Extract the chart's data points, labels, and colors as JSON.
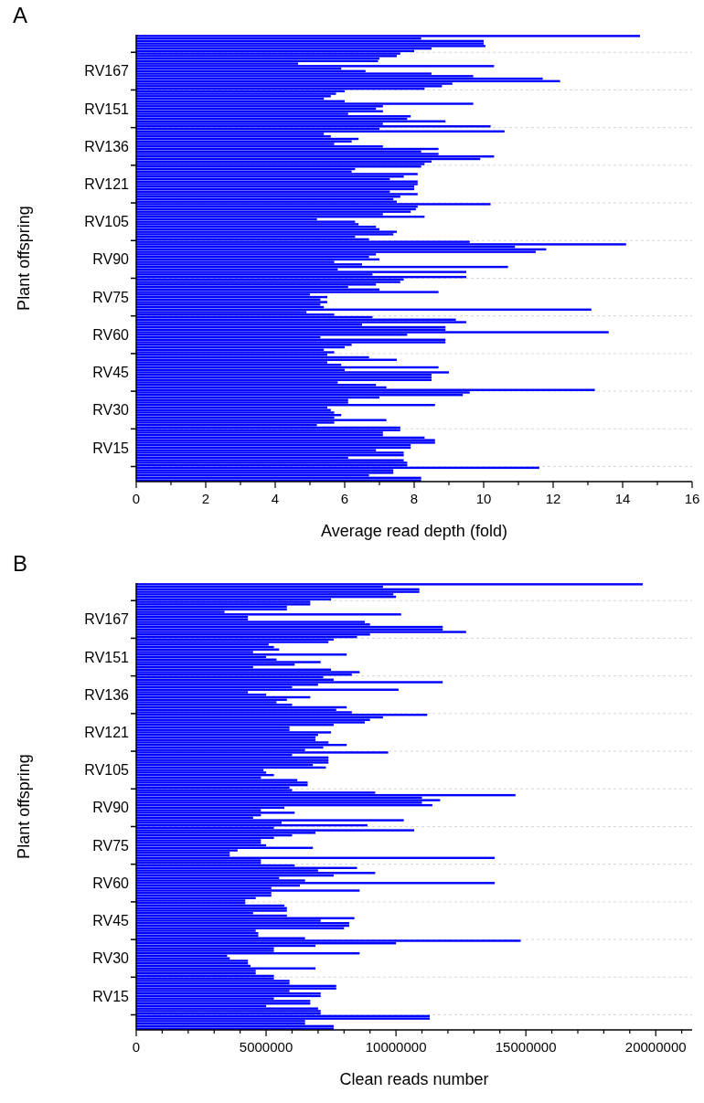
{
  "chart_data": [
    {
      "type": "bar",
      "orientation": "horizontal",
      "title": "A",
      "xlabel": "Average read depth (fold)",
      "ylabel": "Plant offspring",
      "color": "#0000ff",
      "grid": "y",
      "categories": [
        null,
        null,
        null,
        null,
        null,
        null,
        null,
        null,
        null,
        null,
        null,
        null,
        null,
        null,
        "RV167",
        null,
        null,
        null,
        null,
        null,
        null,
        null,
        null,
        null,
        null,
        null,
        null,
        null,
        null,
        "RV151",
        null,
        null,
        null,
        null,
        null,
        null,
        null,
        null,
        null,
        null,
        null,
        null,
        null,
        null,
        "RV136",
        null,
        null,
        null,
        null,
        null,
        null,
        null,
        null,
        null,
        null,
        null,
        null,
        null,
        null,
        "RV121",
        null,
        null,
        null,
        null,
        null,
        null,
        null,
        null,
        null,
        null,
        null,
        null,
        null,
        null,
        "RV105",
        null,
        null,
        null,
        null,
        null,
        null,
        null,
        null,
        null,
        null,
        null,
        null,
        null,
        null,
        "RV90",
        null,
        null,
        null,
        null,
        null,
        null,
        null,
        null,
        null,
        null,
        null,
        null,
        null,
        null,
        "RV75",
        null,
        null,
        null,
        null,
        null,
        null,
        null,
        null,
        null,
        null,
        null,
        null,
        null,
        null,
        "RV60",
        null,
        null,
        null,
        null,
        null,
        null,
        null,
        null,
        null,
        null,
        null,
        null,
        null,
        null,
        "RV45",
        null,
        null,
        null,
        null,
        null,
        null,
        null,
        null,
        null,
        null,
        null,
        null,
        null,
        null,
        "RV30",
        null,
        null,
        null,
        null,
        null,
        null,
        null,
        null,
        null,
        null,
        null,
        null,
        null,
        null,
        "RV15",
        null,
        null,
        null,
        null,
        null,
        null,
        null,
        null,
        null,
        null,
        null,
        null,
        null
      ],
      "values": [
        14.5,
        8.2,
        10.0,
        10.0,
        10.05,
        8.5,
        8.0,
        7.6,
        7.5,
        7.0,
        6.96,
        4.66,
        10.3,
        5.9,
        6.6,
        8.5,
        9.7,
        11.7,
        12.2,
        9.1,
        8.8,
        8.3,
        6.0,
        5.75,
        5.6,
        5.4,
        6.0,
        9.7,
        7.1,
        6.9,
        7.1,
        6.1,
        7.9,
        7.8,
        8.9,
        7.1,
        10.2,
        7.0,
        10.6,
        5.4,
        5.6,
        6.4,
        6.2,
        5.7,
        7.1,
        8.7,
        8.2,
        8.7,
        10.3,
        9.9,
        8.5,
        8.3,
        8.2,
        6.3,
        6.2,
        8.1,
        7.7,
        7.3,
        8.1,
        8.1,
        8.0,
        8.0,
        7.3,
        8.1,
        7.6,
        7.4,
        7.5,
        10.2,
        8.1,
        8.05,
        7.9,
        7.1,
        8.3,
        5.2,
        6.3,
        6.4,
        6.9,
        7.0,
        7.5,
        7.4,
        6.3,
        6.7,
        9.6,
        14.1,
        10.9,
        11.8,
        11.5,
        6.9,
        6.7,
        7.0,
        5.7,
        6.5,
        10.7,
        5.8,
        9.5,
        6.8,
        9.5,
        7.7,
        7.6,
        6.9,
        6.1,
        7.0,
        8.7,
        5.0,
        5.5,
        5.3,
        5.5,
        5.3,
        5.4,
        13.1,
        4.9,
        5.7,
        6.8,
        9.2,
        9.5,
        6.5,
        8.9,
        8.9,
        13.6,
        7.8,
        5.3,
        8.9,
        8.9,
        6.2,
        6.0,
        5.4,
        5.7,
        5.5,
        6.7,
        7.5,
        5.5,
        5.9,
        8.7,
        6.0,
        9.0,
        8.5,
        8.5,
        8.5,
        5.8,
        6.9,
        7.2,
        13.2,
        9.6,
        9.4,
        7.0,
        6.1,
        6.1,
        8.6,
        5.5,
        5.6,
        5.7,
        5.9,
        5.7,
        7.2,
        5.7,
        5.2,
        7.6,
        7.6,
        7.1,
        7.1,
        8.3,
        8.6,
        8.6,
        7.9,
        7.9,
        6.9,
        7.7,
        7.7,
        6.1,
        7.7,
        7.8,
        7.8,
        11.6,
        7.4,
        7.4,
        6.7,
        8.2,
        8.2
      ],
      "xlim": [
        0,
        16
      ],
      "xticks": [
        0,
        {
          "value": 1,
          "label": null
        },
        2,
        {
          "value": 3,
          "label": null
        },
        4,
        {
          "value": 5,
          "label": null
        },
        6,
        {
          "value": 7,
          "label": null
        },
        8,
        {
          "value": 9,
          "label": null
        },
        10,
        {
          "value": 11,
          "label": null
        },
        12,
        {
          "value": 13,
          "label": null
        },
        14,
        {
          "value": 15,
          "label": null
        },
        16
      ]
    },
    {
      "type": "bar",
      "orientation": "horizontal",
      "title": "B",
      "xlabel": "Clean reads number",
      "ylabel": "Plant offspring",
      "color": "#0000ff",
      "grid": "y",
      "categories": [
        null,
        null,
        null,
        null,
        null,
        null,
        null,
        null,
        null,
        null,
        null,
        null,
        null,
        null,
        "RV167",
        null,
        null,
        null,
        null,
        null,
        null,
        null,
        null,
        null,
        null,
        null,
        null,
        null,
        null,
        "RV151",
        null,
        null,
        null,
        null,
        null,
        null,
        null,
        null,
        null,
        null,
        null,
        null,
        null,
        null,
        "RV136",
        null,
        null,
        null,
        null,
        null,
        null,
        null,
        null,
        null,
        null,
        null,
        null,
        null,
        null,
        "RV121",
        null,
        null,
        null,
        null,
        null,
        null,
        null,
        null,
        null,
        null,
        null,
        null,
        null,
        null,
        "RV105",
        null,
        null,
        null,
        null,
        null,
        null,
        null,
        null,
        null,
        null,
        null,
        null,
        null,
        null,
        "RV90",
        null,
        null,
        null,
        null,
        null,
        null,
        null,
        null,
        null,
        null,
        null,
        null,
        null,
        null,
        "RV75",
        null,
        null,
        null,
        null,
        null,
        null,
        null,
        null,
        null,
        null,
        null,
        null,
        null,
        null,
        "RV60",
        null,
        null,
        null,
        null,
        null,
        null,
        null,
        null,
        null,
        null,
        null,
        null,
        null,
        null,
        "RV45",
        null,
        null,
        null,
        null,
        null,
        null,
        null,
        null,
        null,
        null,
        null,
        null,
        null,
        null,
        "RV30",
        null,
        null,
        null,
        null,
        null,
        null,
        null,
        null,
        null,
        null,
        null,
        null,
        null,
        null,
        "RV15",
        null,
        null,
        null,
        null,
        null,
        null,
        null,
        null,
        null,
        null,
        null,
        null,
        null
      ],
      "values": [
        19500000,
        9500000,
        10900000,
        10900000,
        9900000,
        10000000,
        7500000,
        6700000,
        6700000,
        5800000,
        5800000,
        3400000,
        10200000,
        4300000,
        4300000,
        8800000,
        9000000,
        11800000,
        11800000,
        12700000,
        9000000,
        8500000,
        7600000,
        7400000,
        5100000,
        5300000,
        5500000,
        4500000,
        8100000,
        5000000,
        5400000,
        7100000,
        6100000,
        4500000,
        7500000,
        8600000,
        8300000,
        7200000,
        7600000,
        11800000,
        7000000,
        6000000,
        10100000,
        4300000,
        5000000,
        6700000,
        5800000,
        5400000,
        6000000,
        8100000,
        7700000,
        8300000,
        11200000,
        9500000,
        9000000,
        8800000,
        7600000,
        5900000,
        5900000,
        7500000,
        7000000,
        6900000,
        6900000,
        7400000,
        8100000,
        7200000,
        6500000,
        9700000,
        6000000,
        7400000,
        7400000,
        7400000,
        6800000,
        7300000,
        4900000,
        5000000,
        5300000,
        4800000,
        6200000,
        6600000,
        6600000,
        5900000,
        6000000,
        9200000,
        14600000,
        11000000,
        11700000,
        11000000,
        11400000,
        5700000,
        4800000,
        6100000,
        4800000,
        4500000,
        10300000,
        5600000,
        8900000,
        5300000,
        10700000,
        6900000,
        6000000,
        5300000,
        4800000,
        4800000,
        5000000,
        6800000,
        3900000,
        3600000,
        3600000,
        13800000,
        4800000,
        4800000,
        6100000,
        8500000,
        7000000,
        9200000,
        7600000,
        5500000,
        6500000,
        13800000,
        6300000,
        5200000,
        8600000,
        5200000,
        5200000,
        4600000,
        4200000,
        4200000,
        5700000,
        5800000,
        5800000,
        4500000,
        5800000,
        8400000,
        7100000,
        8200000,
        8200000,
        8000000,
        4600000,
        4700000,
        4700000,
        6500000,
        14800000,
        10000000,
        6900000,
        5300000,
        5300000,
        8600000,
        3500000,
        3600000,
        4300000,
        4300000,
        4400000,
        6900000,
        4600000,
        4600000,
        5300000,
        5300000,
        5900000,
        5900000,
        7700000,
        7700000,
        5900000,
        7100000,
        7100000,
        5300000,
        6700000,
        6700000,
        5000000,
        7000000,
        7100000,
        7100000,
        11300000,
        11300000,
        6500000,
        6500000,
        7600000,
        7600000
      ],
      "xlim": [
        0,
        21400000
      ],
      "xticks": [
        0,
        {
          "value": 1000000,
          "label": null
        },
        {
          "value": 2000000,
          "label": null
        },
        {
          "value": 3000000,
          "label": null
        },
        {
          "value": 4000000,
          "label": null
        },
        5000000,
        {
          "value": 6000000,
          "label": null
        },
        {
          "value": 7000000,
          "label": null
        },
        {
          "value": 8000000,
          "label": null
        },
        {
          "value": 9000000,
          "label": null
        },
        10000000,
        {
          "value": 11000000,
          "label": null
        },
        {
          "value": 12000000,
          "label": null
        },
        {
          "value": 13000000,
          "label": null
        },
        {
          "value": 14000000,
          "label": null
        },
        15000000,
        {
          "value": 16000000,
          "label": null
        },
        {
          "value": 17000000,
          "label": null
        },
        {
          "value": 18000000,
          "label": null
        },
        {
          "value": 19000000,
          "label": null
        },
        20000000,
        {
          "value": 21000000,
          "label": null
        }
      ]
    }
  ]
}
